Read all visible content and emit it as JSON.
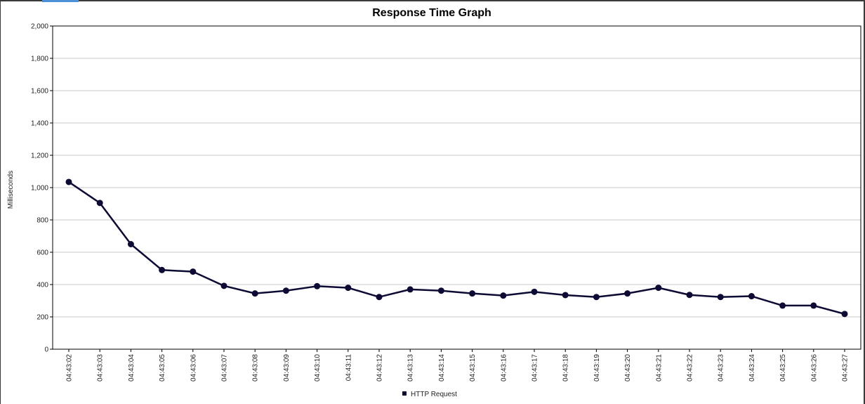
{
  "chart_data": {
    "type": "line",
    "title": "Response Time Graph",
    "xlabel": "",
    "ylabel": "Milliseconds",
    "ylim": [
      0,
      2000
    ],
    "yticks": [
      0,
      200,
      400,
      600,
      800,
      1000,
      1200,
      1400,
      1600,
      1800,
      2000
    ],
    "ytick_labels": [
      "0",
      "200",
      "400",
      "600",
      "800",
      "1,000",
      "1,200",
      "1,400",
      "1,600",
      "1,800",
      "2,000"
    ],
    "grid": true,
    "legend_position": "bottom-center",
    "categories": [
      "04:43:02",
      "04:43:03",
      "04:43:04",
      "04:43:05",
      "04:43:06",
      "04:43:07",
      "04:43:08",
      "04:43:09",
      "04:43:10",
      "04:43:11",
      "04:43:12",
      "04:43:13",
      "04:43:14",
      "04:43:15",
      "04:43:16",
      "04:43:17",
      "04:43:18",
      "04:43:19",
      "04:43:20",
      "04:43:21",
      "04:43:22",
      "04:43:23",
      "04:43:24",
      "04:43:25",
      "04:43:26",
      "04:43:27"
    ],
    "series": [
      {
        "name": "HTTP Request",
        "color": "#0d0b33",
        "values": [
          1035,
          905,
          650,
          490,
          480,
          392,
          345,
          362,
          390,
          380,
          323,
          370,
          362,
          345,
          332,
          355,
          335,
          323,
          345,
          380,
          336,
          323,
          328,
          270,
          270,
          218
        ]
      }
    ]
  }
}
